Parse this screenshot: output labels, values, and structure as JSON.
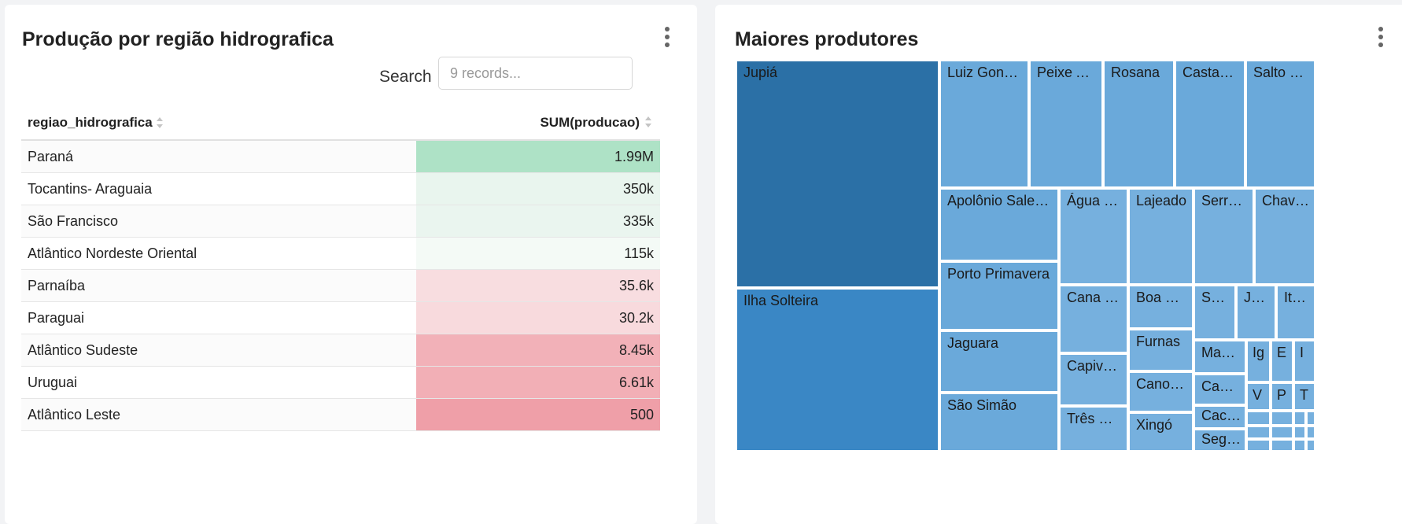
{
  "left_panel": {
    "title": "Produção por região hidrografica",
    "search_label": "Search",
    "search_placeholder": "9 records...",
    "columns": [
      "regiao_hidrografica",
      "SUM(producao)"
    ],
    "rows": [
      {
        "name": "Paraná",
        "value": "1.99M",
        "color": "#aee2c6"
      },
      {
        "name": "Tocantins- Araguaia",
        "value": "350k",
        "color": "#e9f5ee"
      },
      {
        "name": "São Francisco",
        "value": "335k",
        "color": "#eaf5ef"
      },
      {
        "name": "Atlântico Nordeste Oriental",
        "value": "115k",
        "color": "#f4faf6"
      },
      {
        "name": "Parnaíba",
        "value": "35.6k",
        "color": "#f8dde0"
      },
      {
        "name": "Paraguai",
        "value": "30.2k",
        "color": "#f8dadd"
      },
      {
        "name": "Atlântico Sudeste",
        "value": "8.45k",
        "color": "#f2b1b8"
      },
      {
        "name": "Uruguai",
        "value": "6.61k",
        "color": "#f2afb6"
      },
      {
        "name": "Atlântico Leste",
        "value": "500",
        "color": "#ef9fa8"
      }
    ]
  },
  "right_panel": {
    "title": "Maiores produtores",
    "treemap_labels": {
      "jupia": "Jupiá",
      "ilha_solteira": "Ilha Solteira",
      "luiz_gonza": "Luiz Gonza...",
      "peixe_an": "Peixe An...",
      "rosana": "Rosana",
      "castanh": "Castanh...",
      "salto_ca": "Salto Ca...",
      "apolonio": "Apolônio Sales ...",
      "agua_ve": "Água Ve...",
      "lajeado": "Lajeado",
      "serra_d": "Serra d...",
      "chava": "Chava...",
      "porto_primavera": "Porto Primavera",
      "jaguara": "Jaguara",
      "sao_simao": "São Simão",
      "cana_br": "Cana Br...",
      "capivara": "Capivara",
      "tres_ma": "Três Ma...",
      "boa_es": "Boa Es...",
      "furnas": "Furnas",
      "canoas_i": "Canoas I",
      "xingo": "Xingó",
      "salt": "Salt...",
      "jur": "Jur...",
      "itu": "Itu...",
      "manso": "Manso",
      "ig": "Ig",
      "e": "E",
      "i": "I",
      "cano": "Cano...",
      "v": "V",
      "p": "P",
      "t": "T",
      "cach": "Cach...",
      "segre": "Segre..."
    }
  }
}
